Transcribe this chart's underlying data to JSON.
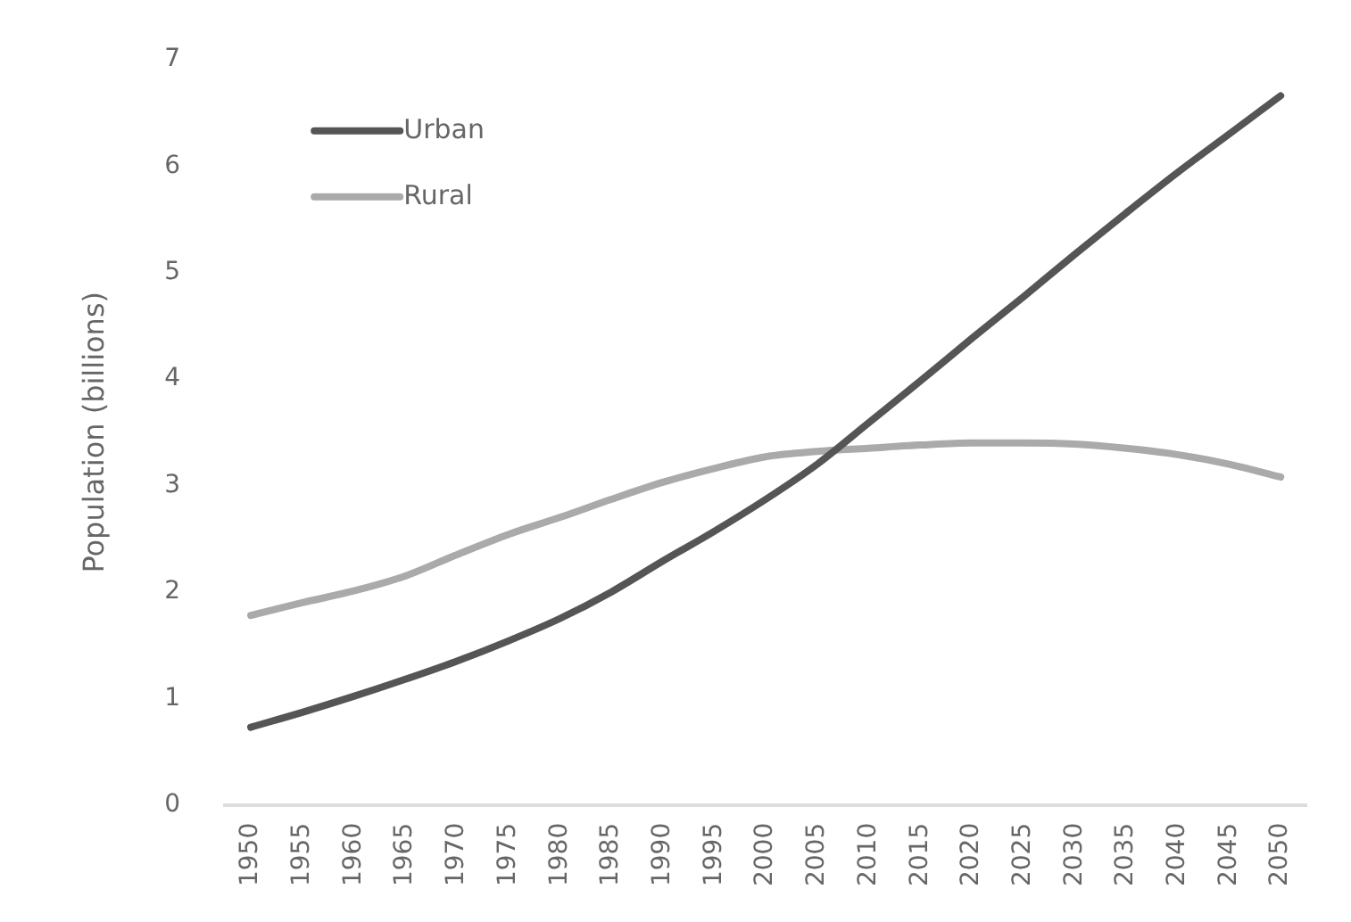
{
  "chart_data": {
    "type": "line",
    "ylabel": "Population (billions)",
    "categories": [
      "1950",
      "1955",
      "1960",
      "1965",
      "1970",
      "1975",
      "1980",
      "1985",
      "1990",
      "1995",
      "2000",
      "2005",
      "2010",
      "2015",
      "2020",
      "2025",
      "2030",
      "2035",
      "2040",
      "2045",
      "2050"
    ],
    "series": [
      {
        "name": "Urban",
        "color": "#555555",
        "values": [
          0.73,
          0.87,
          1.02,
          1.18,
          1.35,
          1.54,
          1.75,
          2.0,
          2.29,
          2.57,
          2.87,
          3.2,
          3.59,
          3.98,
          4.38,
          4.77,
          5.17,
          5.56,
          5.94,
          6.3,
          6.66
        ]
      },
      {
        "name": "Rural",
        "color": "#aaaaaa",
        "values": [
          1.78,
          1.9,
          2.01,
          2.15,
          2.35,
          2.54,
          2.7,
          2.87,
          3.03,
          3.16,
          3.27,
          3.32,
          3.35,
          3.38,
          3.4,
          3.4,
          3.39,
          3.35,
          3.29,
          3.2,
          3.08
        ]
      }
    ],
    "ylim": [
      0,
      7
    ],
    "yticks": [
      0,
      1,
      2,
      3,
      4,
      5,
      6,
      7
    ],
    "grid": false,
    "legend": "top left",
    "marker": "none",
    "line_style": "solid"
  }
}
